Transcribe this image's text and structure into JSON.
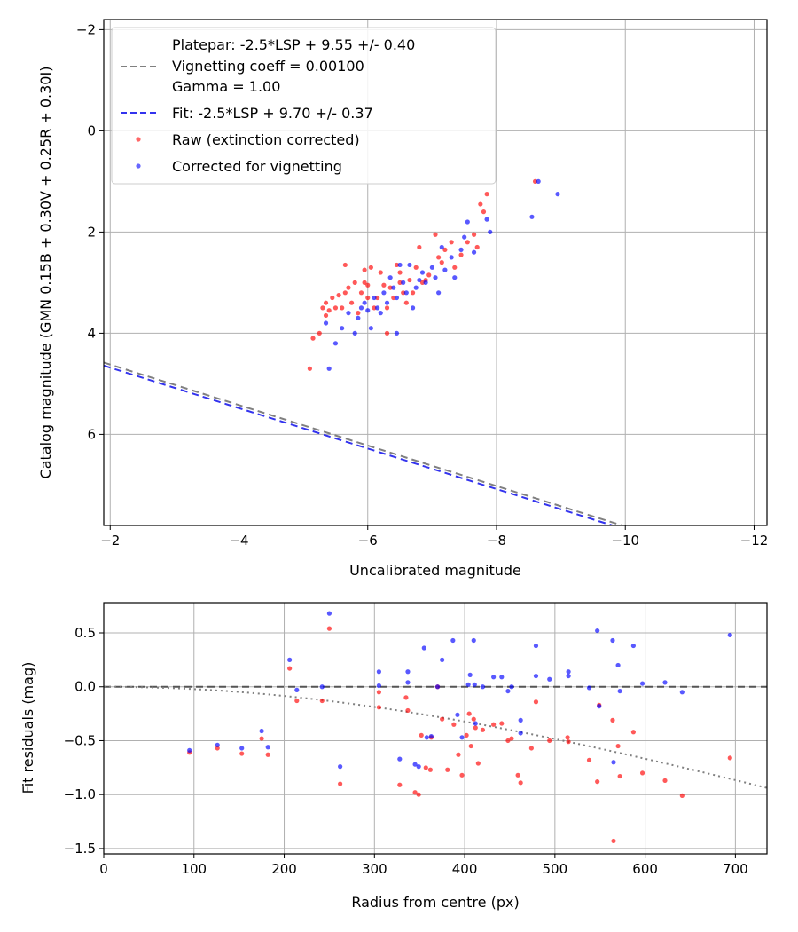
{
  "colors": {
    "raw": "#ff0000",
    "corrected": "#0000ff",
    "platepar_line": "#808080",
    "fit_line": "#3333ee",
    "zero_line": "#555555",
    "vignetting_curve": "#808080"
  },
  "chart_data": [
    {
      "type": "scatter",
      "title": "",
      "xlabel": "Uncalibrated magnitude",
      "ylabel": "Catalog magnitude (GMN 0.15B + 0.30V + 0.25R + 0.30I)",
      "xlim": [
        -1.9,
        -12.2
      ],
      "ylim": [
        7.8,
        -2.2
      ],
      "grid": true,
      "xticks": [
        -2,
        -4,
        -6,
        -8,
        -10,
        -12
      ],
      "xtick_labels": [
        "−2",
        "−4",
        "−6",
        "−8",
        "−10",
        "−12"
      ],
      "yticks": [
        -2,
        0,
        2,
        4,
        6
      ],
      "ytick_labels": [
        "−2",
        "0",
        "2",
        "4",
        "6"
      ],
      "legend": {
        "placement": "top-left",
        "entries": [
          {
            "kind": "dashed-line",
            "color_key": "platepar_line",
            "lines": [
              "Platepar: -2.5*LSP + 9.55 +/- 0.40",
              "Vignetting coeff = 0.00100",
              "Gamma = 1.00"
            ]
          },
          {
            "kind": "dashed-line",
            "color_key": "fit_line",
            "lines": [
              "Fit: -2.5*LSP + 9.70 +/- 0.37"
            ]
          },
          {
            "kind": "marker",
            "color_key": "raw",
            "lines": [
              "Raw (extinction corrected)"
            ]
          },
          {
            "kind": "marker",
            "color_key": "corrected",
            "lines": [
              "Corrected for vignetting"
            ]
          }
        ]
      },
      "lines": [
        {
          "name": "Platepar",
          "slope": -0.4,
          "intercept": 3.82,
          "style": "dashed",
          "color_key": "platepar_line"
        },
        {
          "name": "Fit",
          "slope": -0.4,
          "intercept": 3.88,
          "style": "dashed",
          "color_key": "fit_line"
        }
      ],
      "series": [
        {
          "name": "Raw (extinction corrected)",
          "color_key": "raw",
          "points": [
            [
              -5.15,
              4.1
            ],
            [
              -5.1,
              4.7
            ],
            [
              -5.25,
              4.0
            ],
            [
              -5.3,
              3.5
            ],
            [
              -5.35,
              3.4
            ],
            [
              -5.35,
              3.65
            ],
            [
              -5.4,
              3.55
            ],
            [
              -5.45,
              3.3
            ],
            [
              -5.5,
              3.5
            ],
            [
              -5.55,
              3.25
            ],
            [
              -5.6,
              3.5
            ],
            [
              -5.65,
              3.2
            ],
            [
              -5.65,
              2.65
            ],
            [
              -5.7,
              3.1
            ],
            [
              -5.75,
              3.4
            ],
            [
              -5.8,
              3.0
            ],
            [
              -5.85,
              3.6
            ],
            [
              -5.9,
              3.2
            ],
            [
              -5.95,
              3.0
            ],
            [
              -5.95,
              2.75
            ],
            [
              -6.0,
              3.3
            ],
            [
              -6.0,
              3.05
            ],
            [
              -6.05,
              2.7
            ],
            [
              -6.1,
              3.5
            ],
            [
              -6.15,
              3.3
            ],
            [
              -6.2,
              2.8
            ],
            [
              -6.25,
              3.05
            ],
            [
              -6.3,
              3.5
            ],
            [
              -6.3,
              4.0
            ],
            [
              -6.35,
              3.1
            ],
            [
              -6.4,
              3.3
            ],
            [
              -6.45,
              2.65
            ],
            [
              -6.5,
              3.0
            ],
            [
              -6.5,
              2.8
            ],
            [
              -6.55,
              3.2
            ],
            [
              -6.6,
              3.4
            ],
            [
              -6.65,
              2.95
            ],
            [
              -6.7,
              3.2
            ],
            [
              -6.75,
              2.7
            ],
            [
              -6.8,
              2.3
            ],
            [
              -6.85,
              3.0
            ],
            [
              -6.9,
              2.95
            ],
            [
              -6.95,
              2.85
            ],
            [
              -7.05,
              2.05
            ],
            [
              -7.1,
              2.5
            ],
            [
              -7.15,
              2.6
            ],
            [
              -7.2,
              2.35
            ],
            [
              -7.3,
              2.2
            ],
            [
              -7.35,
              2.7
            ],
            [
              -7.45,
              2.45
            ],
            [
              -7.55,
              2.2
            ],
            [
              -7.65,
              2.05
            ],
            [
              -7.7,
              2.3
            ],
            [
              -7.75,
              1.45
            ],
            [
              -7.8,
              1.6
            ],
            [
              -7.85,
              1.25
            ],
            [
              -8.6,
              1.0
            ]
          ]
        },
        {
          "name": "Corrected for vignetting",
          "color_key": "corrected",
          "points": [
            [
              -5.35,
              3.8
            ],
            [
              -5.4,
              4.7
            ],
            [
              -5.5,
              4.2
            ],
            [
              -5.6,
              3.9
            ],
            [
              -5.7,
              3.6
            ],
            [
              -5.8,
              4.0
            ],
            [
              -5.85,
              3.7
            ],
            [
              -5.9,
              3.5
            ],
            [
              -5.95,
              3.4
            ],
            [
              -6.0,
              3.55
            ],
            [
              -6.05,
              3.9
            ],
            [
              -6.1,
              3.3
            ],
            [
              -6.15,
              3.5
            ],
            [
              -6.2,
              3.6
            ],
            [
              -6.25,
              3.2
            ],
            [
              -6.3,
              3.4
            ],
            [
              -6.35,
              2.9
            ],
            [
              -6.4,
              3.1
            ],
            [
              -6.45,
              3.3
            ],
            [
              -6.45,
              4.0
            ],
            [
              -6.5,
              2.65
            ],
            [
              -6.55,
              3.0
            ],
            [
              -6.6,
              3.2
            ],
            [
              -6.65,
              2.65
            ],
            [
              -6.7,
              3.5
            ],
            [
              -6.75,
              3.1
            ],
            [
              -6.8,
              2.95
            ],
            [
              -6.85,
              2.8
            ],
            [
              -6.9,
              3.0
            ],
            [
              -7.0,
              2.7
            ],
            [
              -7.05,
              2.9
            ],
            [
              -7.1,
              3.2
            ],
            [
              -7.15,
              2.3
            ],
            [
              -7.2,
              2.75
            ],
            [
              -7.3,
              2.5
            ],
            [
              -7.35,
              2.9
            ],
            [
              -7.45,
              2.35
            ],
            [
              -7.5,
              2.1
            ],
            [
              -7.55,
              1.8
            ],
            [
              -7.65,
              2.4
            ],
            [
              -7.85,
              1.75
            ],
            [
              -7.9,
              2.0
            ],
            [
              -8.55,
              1.7
            ],
            [
              -8.65,
              1.0
            ],
            [
              -8.95,
              1.25
            ]
          ]
        }
      ]
    },
    {
      "type": "scatter",
      "title": "",
      "xlabel": "Radius from centre (px)",
      "ylabel": "Fit residuals (mag)",
      "xlim": [
        0,
        735
      ],
      "ylim": [
        -1.55,
        0.78
      ],
      "grid": true,
      "xticks": [
        0,
        100,
        200,
        300,
        400,
        500,
        600,
        700
      ],
      "xtick_labels": [
        "0",
        "100",
        "200",
        "300",
        "400",
        "500",
        "600",
        "700"
      ],
      "yticks": [
        -1.5,
        -1.0,
        -0.5,
        0.0,
        0.5
      ],
      "ytick_labels": [
        "−1.5",
        "−1.0",
        "−0.5",
        "0.0",
        "0.5"
      ],
      "reference_line": {
        "y": 0,
        "style": "dashed",
        "color_key": "zero_line"
      },
      "vignetting_curve": {
        "coeff": 0.001,
        "style": "dotted",
        "color_key": "vignetting_curve"
      },
      "series": [
        {
          "name": "Raw (extinction corrected)",
          "color_key": "raw",
          "points": [
            [
              95,
              -0.61
            ],
            [
              126,
              -0.57
            ],
            [
              153,
              -0.62
            ],
            [
              175,
              -0.48
            ],
            [
              182,
              -0.63
            ],
            [
              206,
              0.17
            ],
            [
              214,
              -0.13
            ],
            [
              242,
              -0.13
            ],
            [
              250,
              0.54
            ],
            [
              262,
              -0.9
            ],
            [
              305,
              -0.19
            ],
            [
              305,
              -0.05
            ],
            [
              328,
              -0.91
            ],
            [
              335,
              -0.1
            ],
            [
              337,
              -0.22
            ],
            [
              345,
              -0.98
            ],
            [
              349,
              -1.0
            ],
            [
              352,
              -0.45
            ],
            [
              357,
              -0.75
            ],
            [
              362,
              -0.77
            ],
            [
              363,
              -0.47
            ],
            [
              370,
              0.0
            ],
            [
              375,
              -0.3
            ],
            [
              381,
              -0.77
            ],
            [
              388,
              -0.35
            ],
            [
              393,
              -0.63
            ],
            [
              397,
              -0.82
            ],
            [
              402,
              -0.45
            ],
            [
              405,
              -0.25
            ],
            [
              407,
              -0.55
            ],
            [
              410,
              -0.3
            ],
            [
              412,
              -0.38
            ],
            [
              415,
              -0.71
            ],
            [
              420,
              -0.4
            ],
            [
              432,
              -0.35
            ],
            [
              441,
              -0.34
            ],
            [
              448,
              -0.5
            ],
            [
              452,
              -0.48
            ],
            [
              459,
              -0.82
            ],
            [
              462,
              -0.89
            ],
            [
              474,
              -0.57
            ],
            [
              479,
              -0.14
            ],
            [
              494,
              -0.5
            ],
            [
              514,
              -0.47
            ],
            [
              515,
              -0.51
            ],
            [
              538,
              -0.68
            ],
            [
              547,
              -0.88
            ],
            [
              549,
              -0.17
            ],
            [
              564,
              -0.31
            ],
            [
              565,
              -1.43
            ],
            [
              570,
              -0.55
            ],
            [
              572,
              -0.83
            ],
            [
              587,
              -0.42
            ],
            [
              597,
              -0.8
            ],
            [
              622,
              -0.87
            ],
            [
              641,
              -1.01
            ],
            [
              694,
              -0.66
            ]
          ]
        },
        {
          "name": "Corrected for vignetting",
          "color_key": "corrected",
          "points": [
            [
              95,
              -0.59
            ],
            [
              126,
              -0.54
            ],
            [
              153,
              -0.57
            ],
            [
              175,
              -0.41
            ],
            [
              182,
              -0.56
            ],
            [
              206,
              0.25
            ],
            [
              214,
              -0.03
            ],
            [
              242,
              0.0
            ],
            [
              250,
              0.68
            ],
            [
              262,
              -0.74
            ],
            [
              305,
              0.01
            ],
            [
              305,
              0.14
            ],
            [
              328,
              -0.67
            ],
            [
              337,
              0.04
            ],
            [
              337,
              0.14
            ],
            [
              345,
              -0.72
            ],
            [
              349,
              -0.74
            ],
            [
              355,
              0.36
            ],
            [
              358,
              -0.47
            ],
            [
              363,
              -0.46
            ],
            [
              370,
              0.0
            ],
            [
              375,
              0.25
            ],
            [
              387,
              0.43
            ],
            [
              392,
              -0.26
            ],
            [
              397,
              -0.47
            ],
            [
              404,
              0.02
            ],
            [
              406,
              0.11
            ],
            [
              410,
              0.43
            ],
            [
              411,
              0.02
            ],
            [
              412,
              -0.34
            ],
            [
              420,
              0.0
            ],
            [
              432,
              0.09
            ],
            [
              441,
              0.09
            ],
            [
              448,
              -0.04
            ],
            [
              452,
              0.0
            ],
            [
              462,
              -0.43
            ],
            [
              462,
              -0.31
            ],
            [
              479,
              0.1
            ],
            [
              479,
              0.38
            ],
            [
              494,
              0.07
            ],
            [
              515,
              0.1
            ],
            [
              515,
              0.14
            ],
            [
              538,
              -0.01
            ],
            [
              547,
              0.52
            ],
            [
              549,
              -0.18
            ],
            [
              564,
              0.43
            ],
            [
              565,
              -0.7
            ],
            [
              570,
              0.2
            ],
            [
              572,
              -0.04
            ],
            [
              587,
              0.38
            ],
            [
              597,
              0.03
            ],
            [
              622,
              0.04
            ],
            [
              641,
              -0.05
            ],
            [
              694,
              0.48
            ]
          ]
        }
      ]
    }
  ]
}
